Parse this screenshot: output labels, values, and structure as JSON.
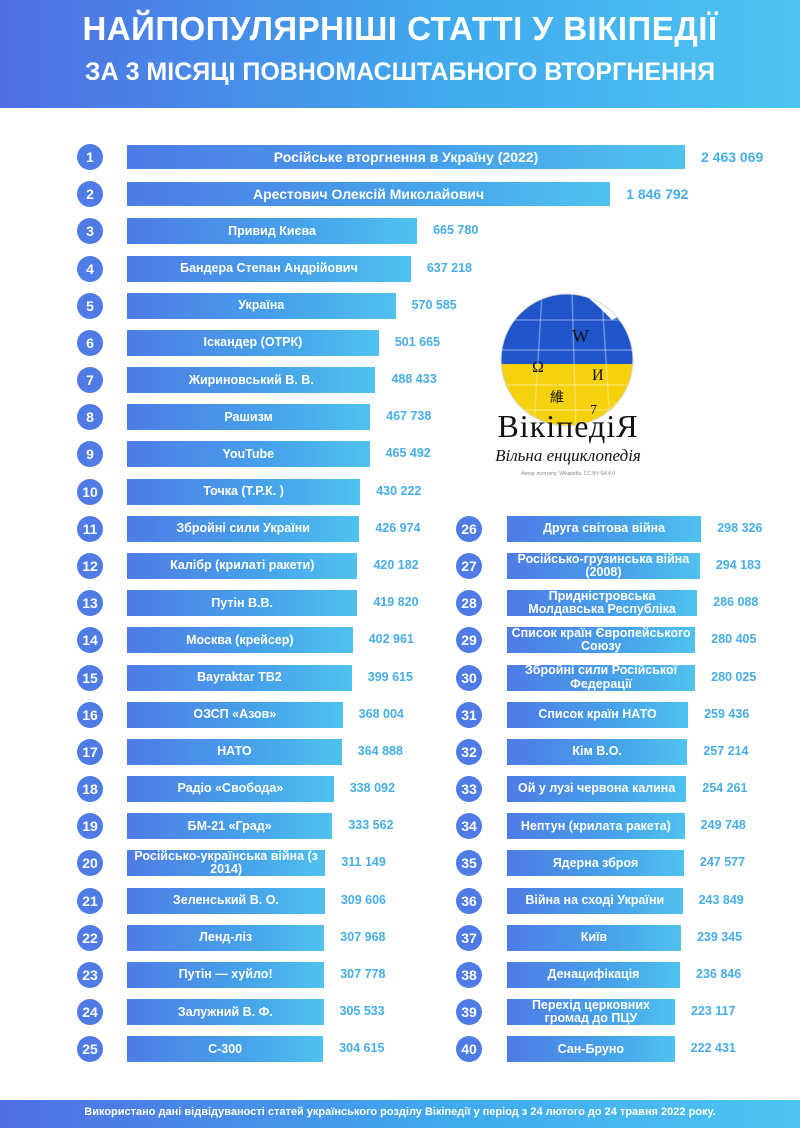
{
  "header": {
    "title_line1": "НАЙПОПУЛЯРНІШІ СТАТТІ У ВІКІПЕДІЇ",
    "title_line2": "ЗА 3 МІСЯЦІ ПОВНОМАСШТАБНОГО ВТОРГНЕННЯ"
  },
  "logo": {
    "name": "ВікіпедіЯ",
    "tagline": "Вільна енциклопедія",
    "small_credit": "Автор логотипу: Wikipedia, CC BY-SA 4.0",
    "colors": {
      "blue": "#1f55c9",
      "yellow": "#f5d20c"
    }
  },
  "footer": {
    "note": "Використано дані відвідуваності статей українського розділу Вікіпедії у період з 24 лютого до 24 травня 2022 року."
  },
  "colors": {
    "circle": "#4e7be6",
    "bar_start": "#4e7be6",
    "bar_end": "#4fc2ee",
    "value": "#46aeea"
  },
  "chart_data": {
    "type": "bar",
    "orientation": "horizontal",
    "items": [
      {
        "rank": "1",
        "label": "Російське вторгнення в Україну (2022)",
        "value": 2463069,
        "value_text": "2 463 069"
      },
      {
        "rank": "2",
        "label": "Арестович Олексій Миколайович",
        "value": 1846792,
        "value_text": "1 846 792"
      },
      {
        "rank": "3",
        "label": "Привид Києва",
        "value": 665780,
        "value_text": "665 780"
      },
      {
        "rank": "4",
        "label": "Бандера Степан Андрійович",
        "value": 637218,
        "value_text": "637 218"
      },
      {
        "rank": "5",
        "label": "Україна",
        "value": 570585,
        "value_text": "570 585"
      },
      {
        "rank": "6",
        "label": "Іскандер (ОТРК)",
        "value": 501665,
        "value_text": "501 665"
      },
      {
        "rank": "7",
        "label": "Жириновський В. В.",
        "value": 488433,
        "value_text": "488 433"
      },
      {
        "rank": "8",
        "label": "Рашизм",
        "value": 467738,
        "value_text": "467 738"
      },
      {
        "rank": "9",
        "label": "YouTube",
        "value": 465492,
        "value_text": "465 492"
      },
      {
        "rank": "10",
        "label": "Точка (Т.Р.К. )",
        "value": 430222,
        "value_text": "430 222"
      },
      {
        "rank": "11",
        "label": "Збройні сили України",
        "value": 426974,
        "value_text": "426 974"
      },
      {
        "rank": "12",
        "label": "Калібр (крилаті ракети)",
        "value": 420182,
        "value_text": "420 182"
      },
      {
        "rank": "13",
        "label": "Путін В.В.",
        "value": 419820,
        "value_text": "419 820"
      },
      {
        "rank": "14",
        "label": "Москва (крейсер)",
        "value": 402961,
        "value_text": "402 961"
      },
      {
        "rank": "15",
        "label": "Bayraktar TB2",
        "value": 399615,
        "value_text": "399 615"
      },
      {
        "rank": "16",
        "label": "ОЗСП «Азов»",
        "value": 368004,
        "value_text": "368 004"
      },
      {
        "rank": "17",
        "label": "НАТО",
        "value": 364888,
        "value_text": "364 888"
      },
      {
        "rank": "18",
        "label": "Радіо «Свобода»",
        "value": 338092,
        "value_text": "338 092"
      },
      {
        "rank": "19",
        "label": "БМ-21 «Град»",
        "value": 333562,
        "value_text": "333 562"
      },
      {
        "rank": "20",
        "label": "Російсько-українська війна (з 2014)",
        "value": 311149,
        "value_text": "311 149"
      },
      {
        "rank": "21",
        "label": "Зеленський В. О.",
        "value": 309606,
        "value_text": "309 606"
      },
      {
        "rank": "22",
        "label": "Ленд-ліз",
        "value": 307968,
        "value_text": "307 968"
      },
      {
        "rank": "23",
        "label": "Путін — хуйло!",
        "value": 307778,
        "value_text": "307 778"
      },
      {
        "rank": "24",
        "label": "Залужний В. Ф.",
        "value": 305533,
        "value_text": "305 533"
      },
      {
        "rank": "25",
        "label": "С-300",
        "value": 304615,
        "value_text": "304 615"
      },
      {
        "rank": "26",
        "label": "Друга світова війна",
        "value": 298326,
        "value_text": "298 326"
      },
      {
        "rank": "27",
        "label": "Російсько-грузинська війна (2008)",
        "value": 294183,
        "value_text": "294 183"
      },
      {
        "rank": "28",
        "label": "Придністровська Молдавська Республіка",
        "value": 286088,
        "value_text": "286 088"
      },
      {
        "rank": "29",
        "label": "Список країн Європейського Союзу",
        "value": 280405,
        "value_text": "280 405"
      },
      {
        "rank": "30",
        "label": "Збройні сили Російської Федерації",
        "value": 280025,
        "value_text": "280 025"
      },
      {
        "rank": "31",
        "label": "Список країн НАТО",
        "value": 259436,
        "value_text": "259 436"
      },
      {
        "rank": "32",
        "label": "Кім В.О.",
        "value": 257214,
        "value_text": "257 214"
      },
      {
        "rank": "33",
        "label": "Ой у лузі червона калина",
        "value": 254261,
        "value_text": "254 261"
      },
      {
        "rank": "34",
        "label": "Нептун (крилата ракета)",
        "value": 249748,
        "value_text": "249 748"
      },
      {
        "rank": "35",
        "label": "Ядерна зброя",
        "value": 247577,
        "value_text": "247 577"
      },
      {
        "rank": "36",
        "label": "Війна на сході України",
        "value": 243849,
        "value_text": "243 849"
      },
      {
        "rank": "37",
        "label": "Київ",
        "value": 239345,
        "value_text": "239 345"
      },
      {
        "rank": "38",
        "label": "Денацифікація",
        "value": 236846,
        "value_text": "236 846"
      },
      {
        "rank": "39",
        "label": "Перехід церковних громад до ПЦУ",
        "value": 223117,
        "value_text": "223 117"
      },
      {
        "rank": "40",
        "label": "Сан-Бруно",
        "value": 222431,
        "value_text": "222 431"
      }
    ]
  }
}
